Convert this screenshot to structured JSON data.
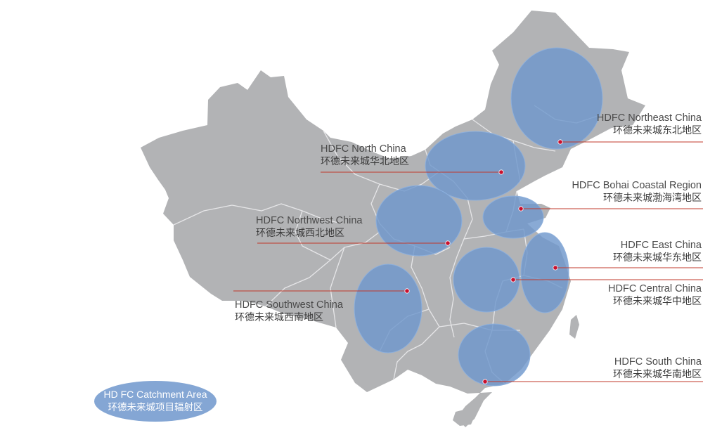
{
  "colors": {
    "land": "#b2b3b5",
    "border": "#e6e6e8",
    "catchment": "#6f97cc",
    "catchment_stroke": "#8eb0dc",
    "leader": "#c0392b",
    "marker": "#c8102e"
  },
  "regions": [
    {
      "id": "northeast",
      "name_en": "HDFC Northeast China",
      "name_cn": "环德未来城东北地区"
    },
    {
      "id": "north",
      "name_en": "HDFC North China",
      "name_cn": "环德未来城华北地区"
    },
    {
      "id": "bohai",
      "name_en": "HDFC Bohai Coastal Region",
      "name_cn": "环德未来城渤海湾地区"
    },
    {
      "id": "northwest",
      "name_en": "HDFC Northwest China",
      "name_cn": "环德未来城西北地区"
    },
    {
      "id": "east",
      "name_en": "HDFC East China",
      "name_cn": "环德未来城华东地区"
    },
    {
      "id": "central",
      "name_en": "HDFC Central China",
      "name_cn": "环德未来城华中地区"
    },
    {
      "id": "southwest",
      "name_en": "HDFC Southwest China",
      "name_cn": "环德未来城西南地区"
    },
    {
      "id": "south",
      "name_en": "HDFC South China",
      "name_cn": "环德未来城华南地区"
    }
  ],
  "legend": {
    "line1": "HD FC Catchment Area",
    "line2": "环德未来城项目辐射区"
  }
}
